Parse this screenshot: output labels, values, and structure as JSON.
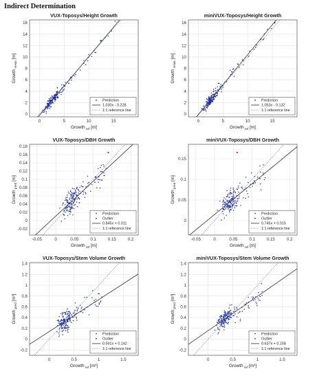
{
  "heading": "Indirect Determination",
  "colors": {
    "prediction": "#1f2f9f",
    "outlier": "#e21b1b",
    "fit": "#444444",
    "ref": "#888888",
    "grid": "#e2e2e2"
  },
  "chart_data": [
    {
      "type": "scatter",
      "title": "VUX-Toposys/Height Growth",
      "xlabel": "Growth",
      "xlabel_sub": "ref",
      "xlabel_unit": "[m]",
      "ylabel": "Growth",
      "ylabel_sub": "meas",
      "ylabel_unit": "[m]",
      "xlim": [
        -2,
        20
      ],
      "ylim": [
        -0.5,
        16.5
      ],
      "xticks": [
        0,
        5,
        10,
        15
      ],
      "yticks": [
        0,
        2,
        4,
        6,
        8,
        10,
        12,
        14,
        16
      ],
      "grid": true,
      "legend_position": "bottom-right",
      "legend": [
        "Prediction",
        "1.030x - 0.228",
        "1:1 reference line"
      ],
      "fit": {
        "slope": 1.03,
        "intercept": -0.228
      },
      "outliers": [],
      "seed": 11,
      "n": 190,
      "xdist": {
        "min": 0.3,
        "mode": 3.2,
        "max": 16.5,
        "skew": 2.2
      },
      "noise": 0.9
    },
    {
      "type": "scatter",
      "title": "miniVUX-Toposys/Height Growth",
      "xlabel": "Growth",
      "xlabel_sub": "ref",
      "xlabel_unit": "[m]",
      "ylabel": "Growth",
      "ylabel_sub": "meas",
      "ylabel_unit": "[m]",
      "xlim": [
        -2,
        20
      ],
      "ylim": [
        -0.5,
        16.5
      ],
      "xticks": [
        0,
        5,
        10,
        15
      ],
      "yticks": [
        0,
        2,
        4,
        6,
        8,
        10,
        12,
        14,
        16
      ],
      "grid": true,
      "legend_position": "bottom-right",
      "legend": [
        "Prediction",
        "1.053x - 0.132",
        "1:1 reference line"
      ],
      "fit": {
        "slope": 1.053,
        "intercept": -0.132
      },
      "outliers": [],
      "seed": 23,
      "n": 190,
      "xdist": {
        "min": 0.3,
        "mode": 3.2,
        "max": 16.5,
        "skew": 2.2
      },
      "noise": 0.95
    },
    {
      "type": "scatter",
      "title": "VUX-Toposys/DBH Growth",
      "xlabel": "Growth",
      "xlabel_sub": "ref",
      "xlabel_unit": "[m]",
      "ylabel": "Growth",
      "ylabel_sub": "pred",
      "ylabel_unit": "[m]",
      "xlim": [
        -0.07,
        0.22
      ],
      "ylim": [
        -0.035,
        0.185
      ],
      "xticks": [
        -0.05,
        0,
        0.05,
        0.1,
        0.15,
        0.2
      ],
      "yticks": [
        -0.02,
        0,
        0.02,
        0.04,
        0.06,
        0.08,
        0.1,
        0.12,
        0.14,
        0.16,
        0.18
      ],
      "grid": true,
      "legend_position": "bottom-right",
      "legend": [
        "Prediction",
        "Outlier",
        "0.845x + 0.011",
        "1:1 reference line"
      ],
      "fit": {
        "slope": 0.845,
        "intercept": 0.011
      },
      "outliers": [
        [
          0.14,
          0.165
        ]
      ],
      "seed": 37,
      "n": 185,
      "xdist": {
        "min": 0.005,
        "mode": 0.05,
        "max": 0.135,
        "skew": 1.0
      },
      "noise": 0.032
    },
    {
      "type": "scatter",
      "title": "miniVUX-Toposys/DBH Growth",
      "xlabel": "Growth",
      "xlabel_sub": "ref",
      "xlabel_unit": "[m]",
      "ylabel": "Growth",
      "ylabel_sub": "pred",
      "ylabel_unit": "[m]",
      "xlim": [
        -0.07,
        0.22
      ],
      "ylim": [
        -0.035,
        0.185
      ],
      "xticks": [
        -0.05,
        0,
        0.05,
        0.1,
        0.15,
        0.2
      ],
      "yticks": [
        0,
        0.05,
        0.1,
        0.15
      ],
      "grid": true,
      "legend_position": "bottom-right",
      "legend": [
        "Prediction",
        "Outlier",
        "0.745x + 0.015",
        "1:1 reference line"
      ],
      "fit": {
        "slope": 0.745,
        "intercept": 0.015
      },
      "outliers": [
        [
          0.06,
          0.165
        ]
      ],
      "seed": 41,
      "n": 185,
      "xdist": {
        "min": 0.005,
        "mode": 0.05,
        "max": 0.135,
        "skew": 1.0
      },
      "noise": 0.03
    },
    {
      "type": "scatter",
      "title": "VUX-Toposys/Stem Volume Growth",
      "xlabel": "Growth",
      "xlabel_sub": "ref",
      "xlabel_unit": "[m³]",
      "ylabel": "Growth",
      "ylabel_sub": "pred",
      "ylabel_unit": "[m³]",
      "xlim": [
        -0.4,
        1.8
      ],
      "ylim": [
        -0.3,
        1.42
      ],
      "xticks": [
        0,
        0.5,
        1,
        1.5
      ],
      "yticks": [
        -0.2,
        0,
        0.2,
        0.4,
        0.6,
        0.8,
        1,
        1.2,
        1.4
      ],
      "grid": true,
      "legend_position": "bottom-right",
      "legend": [
        "Prediction",
        "Outlier",
        "0.591x + 0.142",
        "1:1 reference line"
      ],
      "fit": {
        "slope": 0.591,
        "intercept": 0.142
      },
      "outliers": [],
      "seed": 53,
      "n": 190,
      "xdist": {
        "min": 0.1,
        "mode": 0.38,
        "max": 1.1,
        "skew": 1.4
      },
      "noise": 0.2
    },
    {
      "type": "scatter",
      "title": "miniVUX-Toposys/Stem Volume Growth",
      "xlabel": "Growth",
      "xlabel_sub": "ref",
      "xlabel_unit": "[m³]",
      "ylabel": "Growth",
      "ylabel_sub": "pred",
      "ylabel_unit": "[m³]",
      "xlim": [
        -0.4,
        1.8
      ],
      "ylim": [
        -0.3,
        1.42
      ],
      "xticks": [
        0,
        0.5,
        1,
        1.5
      ],
      "yticks": [
        -0.2,
        0,
        0.2,
        0.4,
        0.6,
        0.8,
        1,
        1.2,
        1.4
      ],
      "grid": true,
      "legend_position": "bottom-right",
      "legend": [
        "Prediction",
        "Outlier",
        "0.637x + 0.158",
        "1:1 reference line"
      ],
      "fit": {
        "slope": 0.637,
        "intercept": 0.158
      },
      "outliers": [],
      "seed": 67,
      "n": 190,
      "xdist": {
        "min": 0.1,
        "mode": 0.4,
        "max": 1.1,
        "skew": 1.4
      },
      "noise": 0.19
    }
  ]
}
